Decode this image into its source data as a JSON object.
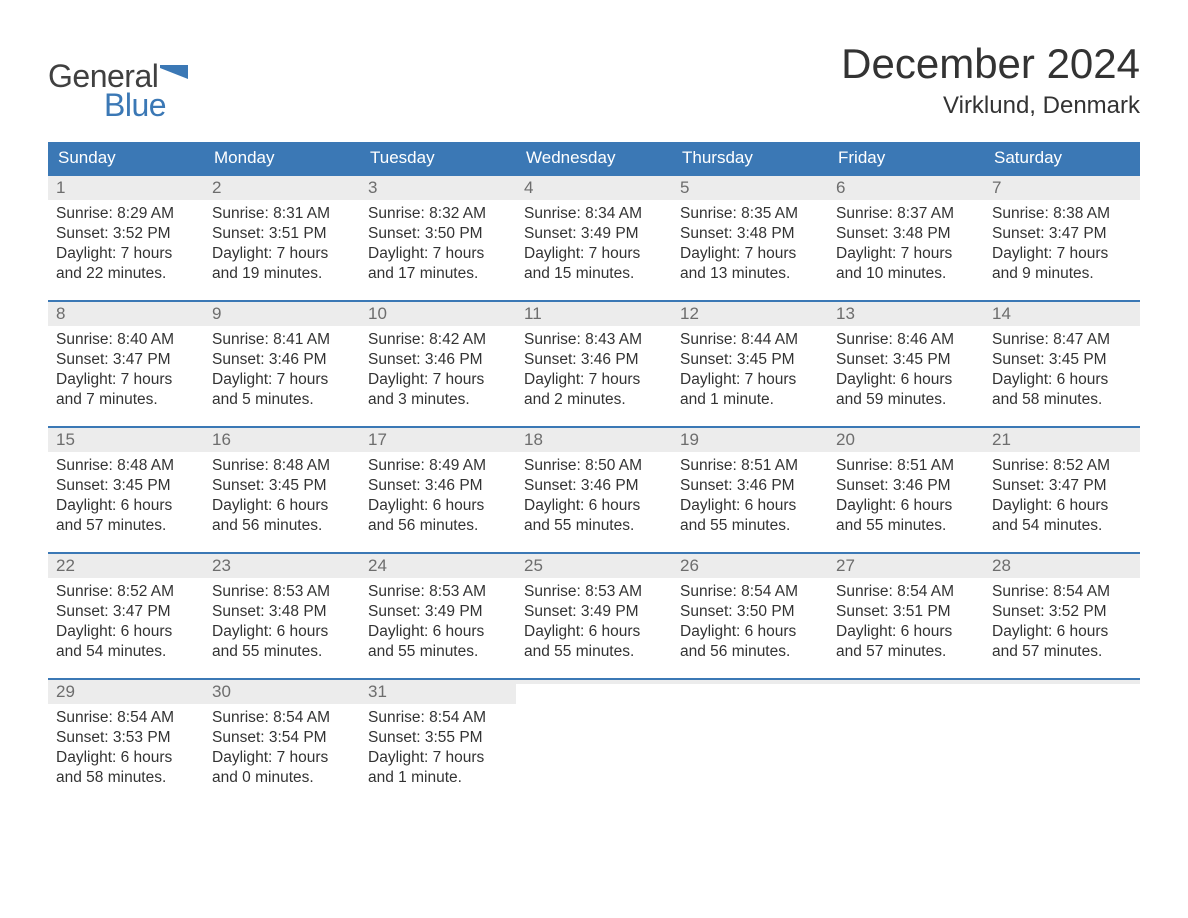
{
  "brand": {
    "word1": "General",
    "word2": "Blue",
    "word1_color": "#404040",
    "word2_color": "#3b78b5",
    "flag_color": "#3b78b5"
  },
  "title": "December 2024",
  "location": "Virklund, Denmark",
  "colors": {
    "header_bg": "#3b78b5",
    "header_text": "#ffffff",
    "week_divider": "#3b78b5",
    "daynum_bg": "#ececec",
    "daynum_text": "#6d6d6d",
    "body_text": "#333333",
    "page_bg": "#ffffff"
  },
  "typography": {
    "title_fontsize": 42,
    "location_fontsize": 24,
    "dow_fontsize": 17,
    "daynum_fontsize": 17,
    "body_fontsize": 15.5
  },
  "days_of_week": [
    "Sunday",
    "Monday",
    "Tuesday",
    "Wednesday",
    "Thursday",
    "Friday",
    "Saturday"
  ],
  "weeks": [
    [
      {
        "num": "1",
        "sunrise": "Sunrise: 8:29 AM",
        "sunset": "Sunset: 3:52 PM",
        "dl1": "Daylight: 7 hours",
        "dl2": "and 22 minutes."
      },
      {
        "num": "2",
        "sunrise": "Sunrise: 8:31 AM",
        "sunset": "Sunset: 3:51 PM",
        "dl1": "Daylight: 7 hours",
        "dl2": "and 19 minutes."
      },
      {
        "num": "3",
        "sunrise": "Sunrise: 8:32 AM",
        "sunset": "Sunset: 3:50 PM",
        "dl1": "Daylight: 7 hours",
        "dl2": "and 17 minutes."
      },
      {
        "num": "4",
        "sunrise": "Sunrise: 8:34 AM",
        "sunset": "Sunset: 3:49 PM",
        "dl1": "Daylight: 7 hours",
        "dl2": "and 15 minutes."
      },
      {
        "num": "5",
        "sunrise": "Sunrise: 8:35 AM",
        "sunset": "Sunset: 3:48 PM",
        "dl1": "Daylight: 7 hours",
        "dl2": "and 13 minutes."
      },
      {
        "num": "6",
        "sunrise": "Sunrise: 8:37 AM",
        "sunset": "Sunset: 3:48 PM",
        "dl1": "Daylight: 7 hours",
        "dl2": "and 10 minutes."
      },
      {
        "num": "7",
        "sunrise": "Sunrise: 8:38 AM",
        "sunset": "Sunset: 3:47 PM",
        "dl1": "Daylight: 7 hours",
        "dl2": "and 9 minutes."
      }
    ],
    [
      {
        "num": "8",
        "sunrise": "Sunrise: 8:40 AM",
        "sunset": "Sunset: 3:47 PM",
        "dl1": "Daylight: 7 hours",
        "dl2": "and 7 minutes."
      },
      {
        "num": "9",
        "sunrise": "Sunrise: 8:41 AM",
        "sunset": "Sunset: 3:46 PM",
        "dl1": "Daylight: 7 hours",
        "dl2": "and 5 minutes."
      },
      {
        "num": "10",
        "sunrise": "Sunrise: 8:42 AM",
        "sunset": "Sunset: 3:46 PM",
        "dl1": "Daylight: 7 hours",
        "dl2": "and 3 minutes."
      },
      {
        "num": "11",
        "sunrise": "Sunrise: 8:43 AM",
        "sunset": "Sunset: 3:46 PM",
        "dl1": "Daylight: 7 hours",
        "dl2": "and 2 minutes."
      },
      {
        "num": "12",
        "sunrise": "Sunrise: 8:44 AM",
        "sunset": "Sunset: 3:45 PM",
        "dl1": "Daylight: 7 hours",
        "dl2": "and 1 minute."
      },
      {
        "num": "13",
        "sunrise": "Sunrise: 8:46 AM",
        "sunset": "Sunset: 3:45 PM",
        "dl1": "Daylight: 6 hours",
        "dl2": "and 59 minutes."
      },
      {
        "num": "14",
        "sunrise": "Sunrise: 8:47 AM",
        "sunset": "Sunset: 3:45 PM",
        "dl1": "Daylight: 6 hours",
        "dl2": "and 58 minutes."
      }
    ],
    [
      {
        "num": "15",
        "sunrise": "Sunrise: 8:48 AM",
        "sunset": "Sunset: 3:45 PM",
        "dl1": "Daylight: 6 hours",
        "dl2": "and 57 minutes."
      },
      {
        "num": "16",
        "sunrise": "Sunrise: 8:48 AM",
        "sunset": "Sunset: 3:45 PM",
        "dl1": "Daylight: 6 hours",
        "dl2": "and 56 minutes."
      },
      {
        "num": "17",
        "sunrise": "Sunrise: 8:49 AM",
        "sunset": "Sunset: 3:46 PM",
        "dl1": "Daylight: 6 hours",
        "dl2": "and 56 minutes."
      },
      {
        "num": "18",
        "sunrise": "Sunrise: 8:50 AM",
        "sunset": "Sunset: 3:46 PM",
        "dl1": "Daylight: 6 hours",
        "dl2": "and 55 minutes."
      },
      {
        "num": "19",
        "sunrise": "Sunrise: 8:51 AM",
        "sunset": "Sunset: 3:46 PM",
        "dl1": "Daylight: 6 hours",
        "dl2": "and 55 minutes."
      },
      {
        "num": "20",
        "sunrise": "Sunrise: 8:51 AM",
        "sunset": "Sunset: 3:46 PM",
        "dl1": "Daylight: 6 hours",
        "dl2": "and 55 minutes."
      },
      {
        "num": "21",
        "sunrise": "Sunrise: 8:52 AM",
        "sunset": "Sunset: 3:47 PM",
        "dl1": "Daylight: 6 hours",
        "dl2": "and 54 minutes."
      }
    ],
    [
      {
        "num": "22",
        "sunrise": "Sunrise: 8:52 AM",
        "sunset": "Sunset: 3:47 PM",
        "dl1": "Daylight: 6 hours",
        "dl2": "and 54 minutes."
      },
      {
        "num": "23",
        "sunrise": "Sunrise: 8:53 AM",
        "sunset": "Sunset: 3:48 PM",
        "dl1": "Daylight: 6 hours",
        "dl2": "and 55 minutes."
      },
      {
        "num": "24",
        "sunrise": "Sunrise: 8:53 AM",
        "sunset": "Sunset: 3:49 PM",
        "dl1": "Daylight: 6 hours",
        "dl2": "and 55 minutes."
      },
      {
        "num": "25",
        "sunrise": "Sunrise: 8:53 AM",
        "sunset": "Sunset: 3:49 PM",
        "dl1": "Daylight: 6 hours",
        "dl2": "and 55 minutes."
      },
      {
        "num": "26",
        "sunrise": "Sunrise: 8:54 AM",
        "sunset": "Sunset: 3:50 PM",
        "dl1": "Daylight: 6 hours",
        "dl2": "and 56 minutes."
      },
      {
        "num": "27",
        "sunrise": "Sunrise: 8:54 AM",
        "sunset": "Sunset: 3:51 PM",
        "dl1": "Daylight: 6 hours",
        "dl2": "and 57 minutes."
      },
      {
        "num": "28",
        "sunrise": "Sunrise: 8:54 AM",
        "sunset": "Sunset: 3:52 PM",
        "dl1": "Daylight: 6 hours",
        "dl2": "and 57 minutes."
      }
    ],
    [
      {
        "num": "29",
        "sunrise": "Sunrise: 8:54 AM",
        "sunset": "Sunset: 3:53 PM",
        "dl1": "Daylight: 6 hours",
        "dl2": "and 58 minutes."
      },
      {
        "num": "30",
        "sunrise": "Sunrise: 8:54 AM",
        "sunset": "Sunset: 3:54 PM",
        "dl1": "Daylight: 7 hours",
        "dl2": "and 0 minutes."
      },
      {
        "num": "31",
        "sunrise": "Sunrise: 8:54 AM",
        "sunset": "Sunset: 3:55 PM",
        "dl1": "Daylight: 7 hours",
        "dl2": "and 1 minute."
      },
      {
        "num": "",
        "sunrise": "",
        "sunset": "",
        "dl1": "",
        "dl2": ""
      },
      {
        "num": "",
        "sunrise": "",
        "sunset": "",
        "dl1": "",
        "dl2": ""
      },
      {
        "num": "",
        "sunrise": "",
        "sunset": "",
        "dl1": "",
        "dl2": ""
      },
      {
        "num": "",
        "sunrise": "",
        "sunset": "",
        "dl1": "",
        "dl2": ""
      }
    ]
  ]
}
